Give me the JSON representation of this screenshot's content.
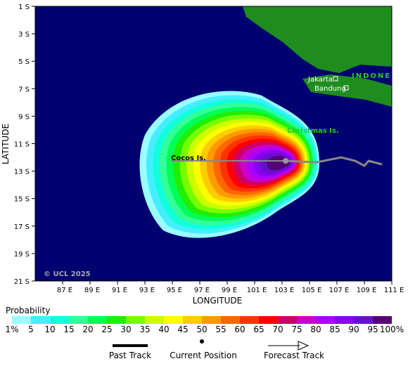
{
  "map": {
    "lat_ticks": [
      "1 S",
      "3 S",
      "5 S",
      "7 S",
      "9 S",
      "11 S",
      "13 S",
      "15 S",
      "17 S",
      "19 S",
      "21 S"
    ],
    "lon_ticks": [
      "87 E",
      "89 E",
      "91 E",
      "93 E",
      "95 E",
      "97 E",
      "99 E",
      "101 E",
      "103 E",
      "105 E",
      "107 E",
      "109 E",
      "111 E"
    ],
    "x_label": "LONGITUDE",
    "y_label": "LATITUDE",
    "places": {
      "jakarta": "Jakarta",
      "bandung": "Bandung",
      "country": "INDONE",
      "christmas": "Christmas Is.",
      "cocos": "Cocos Is."
    },
    "copyright": "© UCL 2025"
  },
  "legend": {
    "title": "Probability",
    "labels": [
      "1%",
      "5",
      "10",
      "15",
      "20",
      "25",
      "30",
      "35",
      "40",
      "45",
      "50",
      "55",
      "60",
      "65",
      "70",
      "75",
      "80",
      "85",
      "90",
      "95",
      "100%"
    ],
    "colors": [
      "#99ffff",
      "#44eeff",
      "#11ffdd",
      "#33ff99",
      "#00ff55",
      "#22ee00",
      "#77ff00",
      "#ccff00",
      "#ffff00",
      "#ffcc00",
      "#ff9900",
      "#ff6600",
      "#ff3300",
      "#ff0000",
      "#cc0066",
      "#cc00cc",
      "#aa00ff",
      "#8800ee",
      "#6611cc",
      "#550077"
    ]
  },
  "key": {
    "past": "Past Track",
    "current": "Current Position",
    "forecast": "Forecast Track"
  }
}
